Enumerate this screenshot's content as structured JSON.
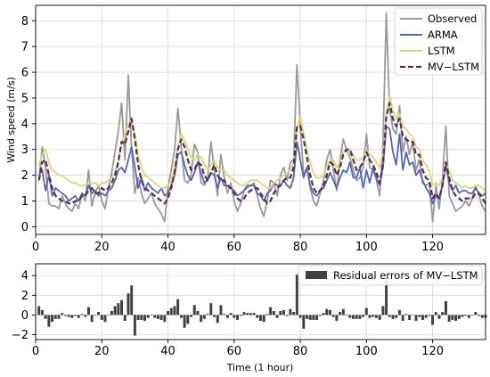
{
  "chart_data": [
    {
      "type": "line",
      "title": "",
      "xlabel": "",
      "ylabel": "Wind speed (m/s)",
      "xlim": [
        0,
        136
      ],
      "ylim": [
        -0.3,
        8.6
      ],
      "xticks": [
        "0",
        "20",
        "40",
        "60",
        "80",
        "100",
        "120"
      ],
      "yticks": [
        "0",
        "1",
        "2",
        "3",
        "4",
        "5",
        "6",
        "7",
        "8"
      ],
      "grid": true,
      "legend_position": "top-right",
      "x_start": 1,
      "series": [
        {
          "name": "Observed",
          "color": "#999999",
          "dash": "solid",
          "values": [
            1.8,
            3.1,
            2.3,
            0.9,
            0.8,
            0.8,
            0.7,
            1.2,
            0.9,
            0.7,
            0.6,
            0.9,
            0.7,
            1.3,
            1.0,
            2.2,
            0.8,
            1.3,
            1.6,
            1.0,
            0.7,
            1.5,
            2.1,
            2.9,
            3.7,
            4.8,
            2.6,
            5.9,
            3.0,
            1.3,
            1.9,
            1.3,
            0.9,
            1.1,
            1.3,
            0.9,
            0.7,
            0.5,
            0.2,
            1.5,
            2.2,
            3.0,
            4.6,
            3.1,
            1.8,
            1.7,
            2.0,
            3.2,
            2.9,
            1.7,
            1.6,
            1.9,
            3.3,
            2.2,
            1.2,
            2.8,
            1.9,
            1.3,
            1.7,
            1.0,
            0.6,
            0.9,
            1.4,
            1.5,
            1.6,
            1.7,
            1.2,
            0.7,
            0.4,
            1.0,
            1.8,
            1.7,
            1.2,
            2.0,
            2.3,
            1.8,
            2.5,
            2.6,
            6.3,
            3.9,
            2.0,
            2.3,
            1.5,
            1.0,
            0.8,
            1.3,
            1.8,
            2.6,
            3.0,
            2.2,
            1.4,
            2.6,
            3.4,
            3.0,
            2.7,
            2.2,
            1.8,
            1.9,
            2.3,
            3.6,
            2.3,
            2.2,
            1.8,
            1.2,
            3.3,
            8.3,
            4.6,
            3.8,
            3.6,
            4.7,
            2.9,
            3.5,
            2.8,
            3.3,
            2.2,
            2.6,
            1.7,
            1.6,
            1.7,
            0.2,
            1.6,
            0.7,
            1.9,
            3.9,
            1.2,
            0.9,
            0.6,
            0.7,
            0.8,
            1.0,
            0.8,
            1.1,
            1.6,
            1.2,
            0.8,
            0.6
          ]
        },
        {
          "name": "ARMA",
          "color": "#5566b4",
          "dash": "solid",
          "values": [
            2.0,
            2.2,
            1.4,
            2.0,
            1.2,
            1.5,
            1.4,
            1.3,
            1.2,
            1.0,
            1.1,
            1.2,
            1.0,
            1.3,
            1.2,
            1.6,
            1.3,
            1.4,
            1.2,
            1.3,
            1.2,
            1.4,
            1.5,
            1.8,
            2.2,
            2.3,
            2.1,
            2.6,
            3.1,
            2.3,
            1.5,
            1.9,
            1.4,
            1.7,
            1.5,
            1.4,
            1.3,
            1.5,
            1.2,
            1.3,
            1.6,
            2.0,
            2.8,
            2.9,
            2.4,
            2.0,
            1.8,
            2.1,
            2.5,
            2.1,
            1.7,
            1.8,
            2.1,
            2.0,
            1.5,
            1.9,
            1.6,
            1.6,
            1.5,
            1.4,
            1.2,
            1.3,
            1.4,
            1.6,
            1.6,
            1.6,
            1.3,
            1.2,
            1.0,
            1.3,
            1.4,
            1.7,
            1.6,
            1.6,
            1.8,
            1.6,
            1.5,
            1.9,
            3.3,
            2.6,
            1.9,
            2.3,
            1.6,
            1.3,
            1.2,
            1.4,
            1.5,
            1.8,
            2.1,
            1.8,
            1.5,
            1.9,
            2.2,
            2.1,
            2.5,
            1.9,
            1.9,
            2.3,
            1.5,
            2.2,
            1.7,
            2.3,
            1.9,
            1.6,
            2.3,
            3.9,
            3.8,
            2.9,
            2.4,
            3.6,
            2.2,
            2.9,
            2.4,
            2.5,
            2.0,
            2.2,
            1.8,
            1.5,
            1.3,
            0.9,
            1.2,
            1.1,
            1.6,
            2.4,
            1.7,
            1.4,
            1.6,
            1.3,
            1.4,
            1.4,
            1.3,
            1.3,
            1.5,
            1.3,
            1.2,
            1.3
          ]
        },
        {
          "name": "LSTM",
          "color": "#d9d77a",
          "dash": "solid",
          "values": [
            2.4,
            2.8,
            3.0,
            2.5,
            2.2,
            2.1,
            2.0,
            2.0,
            1.9,
            1.8,
            1.7,
            1.7,
            1.6,
            1.6,
            1.6,
            1.7,
            1.7,
            1.7,
            1.6,
            1.7,
            1.7,
            1.8,
            1.9,
            2.1,
            2.6,
            3.2,
            3.6,
            4.0,
            4.1,
            3.6,
            2.8,
            2.3,
            2.0,
            1.9,
            1.8,
            1.7,
            1.6,
            1.5,
            1.5,
            1.6,
            1.8,
            2.3,
            3.1,
            3.6,
            3.4,
            3.0,
            2.7,
            2.6,
            2.8,
            2.7,
            2.4,
            2.2,
            2.4,
            2.6,
            2.3,
            2.2,
            2.2,
            2.0,
            1.9,
            1.8,
            1.7,
            1.6,
            1.6,
            1.7,
            1.8,
            1.8,
            1.8,
            1.7,
            1.6,
            1.5,
            1.5,
            1.7,
            1.8,
            1.9,
            2.0,
            2.1,
            2.2,
            2.5,
            3.8,
            4.3,
            3.6,
            3.0,
            2.5,
            2.1,
            1.9,
            1.9,
            2.0,
            2.3,
            2.6,
            2.6,
            2.3,
            2.5,
            2.9,
            3.0,
            3.0,
            2.8,
            2.6,
            2.6,
            2.7,
            3.0,
            2.8,
            2.7,
            2.5,
            2.3,
            2.9,
            4.3,
            5.1,
            4.5,
            4.2,
            4.4,
            3.9,
            3.8,
            3.6,
            3.5,
            3.1,
            3.0,
            2.6,
            2.4,
            2.2,
            1.6,
            1.7,
            1.6,
            1.9,
            2.5,
            2.2,
            1.8,
            1.7,
            1.6,
            1.5,
            1.6,
            1.5,
            1.5,
            1.6,
            1.6,
            1.5,
            1.4
          ]
        },
        {
          "name": "MV−LSTM",
          "color": "#5b2c4f",
          "dash": "dashed",
          "values": [
            1.8,
            2.5,
            2.6,
            2.0,
            1.5,
            1.2,
            1.1,
            1.0,
            1.0,
            0.9,
            0.9,
            1.0,
            1.0,
            1.2,
            1.2,
            1.4,
            1.5,
            1.3,
            1.3,
            1.5,
            1.4,
            1.5,
            1.7,
            2.0,
            2.5,
            3.3,
            3.2,
            3.7,
            4.2,
            3.4,
            2.4,
            1.8,
            1.5,
            1.4,
            1.3,
            1.2,
            1.1,
            1.0,
            0.9,
            1.1,
            1.5,
            2.1,
            3.0,
            3.4,
            3.1,
            2.6,
            2.2,
            2.2,
            2.5,
            2.4,
            2.0,
            1.8,
            2.1,
            2.4,
            2.0,
            1.8,
            1.8,
            1.6,
            1.5,
            1.3,
            1.1,
            1.0,
            1.1,
            1.3,
            1.4,
            1.5,
            1.5,
            1.3,
            1.1,
            0.9,
            1.0,
            1.3,
            1.5,
            1.6,
            1.8,
            1.9,
            1.9,
            2.3,
            3.9,
            3.9,
            3.4,
            2.7,
            2.0,
            1.5,
            1.3,
            1.4,
            1.6,
            2.0,
            2.5,
            2.4,
            2.0,
            2.3,
            2.8,
            3.0,
            3.0,
            2.6,
            2.2,
            2.3,
            2.5,
            2.9,
            2.6,
            2.4,
            2.1,
            1.7,
            2.4,
            4.3,
            4.8,
            4.2,
            3.9,
            4.2,
            3.5,
            3.4,
            3.3,
            3.3,
            2.8,
            2.8,
            2.2,
            1.9,
            1.8,
            1.1,
            1.3,
            1.1,
            1.6,
            2.5,
            1.9,
            1.4,
            1.2,
            1.1,
            1.0,
            1.1,
            1.1,
            1.1,
            1.3,
            1.3,
            1.1,
            0.9
          ]
        }
      ]
    },
    {
      "type": "bar",
      "title": "",
      "xlabel": "Time (1 hour)",
      "ylabel": "",
      "xlim": [
        0,
        136
      ],
      "ylim": [
        -2.5,
        5.2
      ],
      "xticks": [
        "0",
        "20",
        "40",
        "60",
        "80",
        "100",
        "120"
      ],
      "yticks": [
        "−2",
        "0",
        "2",
        "4"
      ],
      "grid": true,
      "legend_position": "top-right",
      "x_start": 1,
      "series": [
        {
          "name": "Residual errors of MV−LSTM",
          "color": "#404040",
          "values": [
            0.9,
            0.5,
            -0.4,
            -1.2,
            -0.7,
            -0.4,
            -0.4,
            0.2,
            -0.1,
            -0.2,
            -0.3,
            -0.1,
            -0.3,
            0.1,
            -0.2,
            0.8,
            -0.7,
            0.0,
            0.3,
            -0.5,
            -0.7,
            0.0,
            0.4,
            0.9,
            1.2,
            1.5,
            -0.6,
            2.2,
            3.0,
            -2.1,
            -0.5,
            -0.5,
            -0.6,
            -0.3,
            0.0,
            -0.3,
            -0.4,
            -0.5,
            -0.7,
            0.4,
            0.7,
            0.9,
            1.6,
            -0.3,
            -1.3,
            -0.9,
            -0.2,
            1.0,
            0.4,
            -0.7,
            -0.4,
            0.1,
            1.2,
            -0.2,
            -0.8,
            1.0,
            0.1,
            -0.3,
            0.2,
            -0.3,
            -0.5,
            -0.1,
            0.3,
            0.2,
            0.2,
            0.2,
            -0.3,
            -0.6,
            -0.7,
            0.1,
            0.8,
            0.4,
            -0.3,
            0.4,
            0.5,
            -0.1,
            0.6,
            0.3,
            4.1,
            -0.3,
            -1.4,
            -0.4,
            -0.5,
            -0.5,
            -0.5,
            -0.1,
            0.2,
            0.6,
            0.5,
            -0.2,
            -0.6,
            0.3,
            0.6,
            0.0,
            -0.3,
            -0.4,
            -0.4,
            -0.4,
            -0.2,
            0.7,
            -0.3,
            -0.2,
            -0.3,
            -0.5,
            0.9,
            3.5,
            -0.2,
            -0.4,
            -0.3,
            0.5,
            -0.6,
            0.1,
            -0.5,
            0.0,
            -0.6,
            -0.2,
            -0.5,
            -0.3,
            -0.1,
            -1.0,
            0.3,
            -0.4,
            0.3,
            1.4,
            -0.7,
            -0.5,
            -0.6,
            -0.4,
            -0.2,
            -0.1,
            -0.3,
            0.0,
            0.3,
            -0.1,
            -0.3,
            -0.3
          ]
        }
      ]
    }
  ]
}
